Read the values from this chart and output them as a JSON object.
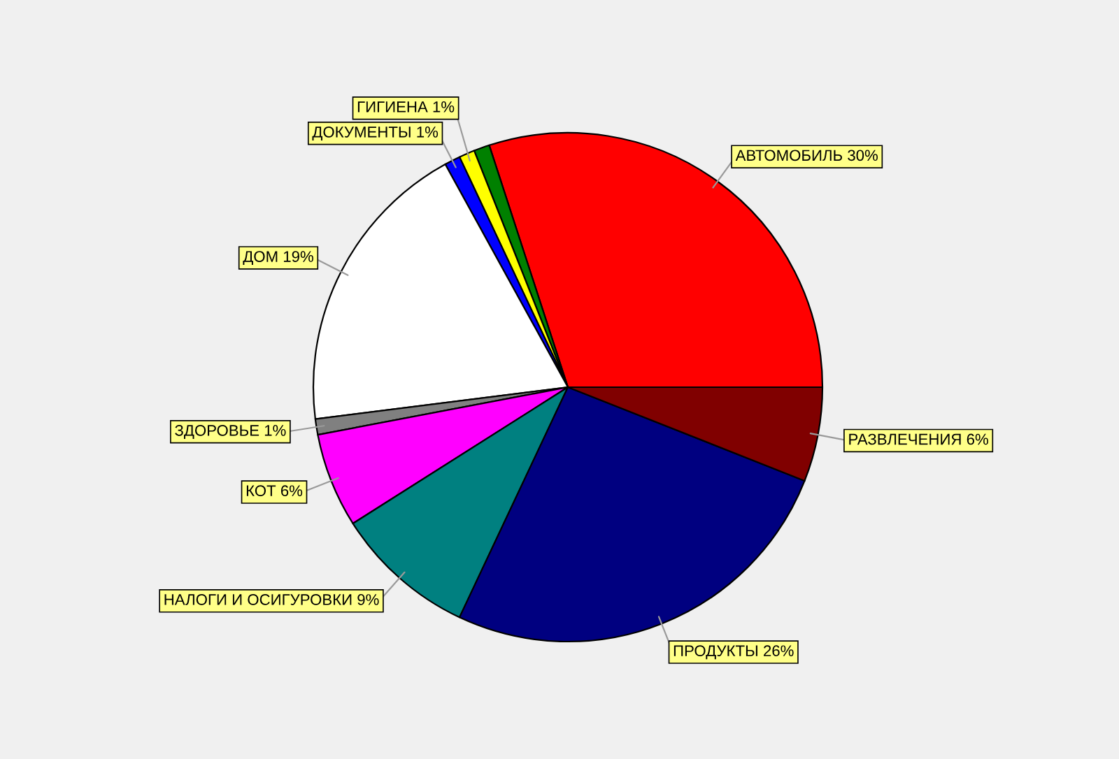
{
  "chart_data": {
    "type": "pie",
    "categories": [
      "АВТОМОБИЛЬ",
      null,
      "ГИГИЕНА",
      "ДОКУМЕНТЫ",
      "ДОМ",
      "ЗДОРОВЬЕ",
      "КОТ",
      "НАЛОГИ И ОСИГУРОВКИ",
      "ПРОДУКТЫ",
      "РАЗВЛЕЧЕНИЯ"
    ],
    "values": [
      30,
      1,
      1,
      1,
      19,
      1,
      6,
      9,
      26,
      6
    ],
    "colors": [
      "#ff0000",
      "#008000",
      "#ffff00",
      "#0000ff",
      "#ffffff",
      "#808080",
      "#ff00ff",
      "#008080",
      "#000080",
      "#800000"
    ],
    "value_labels": [
      "30%",
      null,
      "1%",
      "1%",
      "19%",
      "1%",
      "6%",
      "9%",
      "26%",
      "6%"
    ]
  }
}
